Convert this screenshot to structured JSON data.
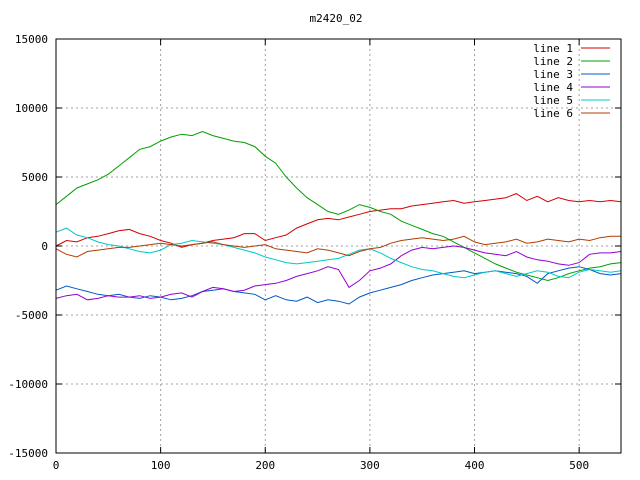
{
  "chart_data": {
    "type": "line",
    "title": "m2420_02",
    "xlabel": "",
    "ylabel": "",
    "xlim": [
      0,
      540
    ],
    "ylim": [
      -15000,
      15000
    ],
    "xticks": [
      0,
      100,
      200,
      300,
      400,
      500
    ],
    "yticks": [
      -15000,
      -10000,
      -5000,
      0,
      5000,
      10000,
      15000
    ],
    "grid": true,
    "legend_position": "top-right",
    "series": [
      {
        "name": "line 1",
        "color": "#d40000",
        "x": [
          0,
          10,
          20,
          30,
          40,
          50,
          60,
          70,
          80,
          90,
          100,
          110,
          120,
          130,
          140,
          150,
          160,
          170,
          180,
          190,
          200,
          210,
          220,
          230,
          240,
          250,
          260,
          270,
          280,
          290,
          300,
          310,
          320,
          330,
          340,
          350,
          360,
          370,
          380,
          390,
          400,
          410,
          420,
          430,
          440,
          450,
          460,
          470,
          480,
          490,
          500,
          510,
          520,
          530,
          540
        ],
        "y": [
          0,
          400,
          300,
          600,
          700,
          900,
          1100,
          1200,
          900,
          700,
          400,
          200,
          -100,
          100,
          200,
          400,
          500,
          600,
          900,
          900,
          400,
          600,
          800,
          1300,
          1600,
          1900,
          2000,
          1900,
          2100,
          2300,
          2500,
          2600,
          2700,
          2700,
          2900,
          3000,
          3100,
          3200,
          3300,
          3100,
          3200,
          3300,
          3400,
          3500,
          3800,
          3300,
          3600,
          3200,
          3500,
          3300,
          3200,
          3300,
          3200,
          3300,
          3200
        ]
      },
      {
        "name": "line 2",
        "color": "#00a000",
        "x": [
          0,
          10,
          20,
          30,
          40,
          50,
          60,
          70,
          80,
          90,
          100,
          110,
          120,
          130,
          140,
          150,
          160,
          170,
          180,
          190,
          200,
          210,
          220,
          230,
          240,
          250,
          260,
          270,
          280,
          290,
          300,
          310,
          320,
          330,
          340,
          350,
          360,
          370,
          380,
          390,
          400,
          410,
          420,
          430,
          440,
          450,
          460,
          470,
          480,
          490,
          500,
          510,
          520,
          530,
          540
        ],
        "y": [
          3000,
          3600,
          4200,
          4500,
          4800,
          5200,
          5800,
          6400,
          7000,
          7200,
          7600,
          7900,
          8100,
          8000,
          8300,
          8000,
          7800,
          7600,
          7500,
          7200,
          6500,
          6000,
          5000,
          4200,
          3500,
          3000,
          2500,
          2300,
          2600,
          3000,
          2800,
          2500,
          2300,
          1800,
          1500,
          1200,
          900,
          700,
          300,
          -100,
          -500,
          -900,
          -1300,
          -1600,
          -1900,
          -2100,
          -2300,
          -2500,
          -2300,
          -2000,
          -1800,
          -1600,
          -1500,
          -1300,
          -1200
        ]
      },
      {
        "name": "line 3",
        "color": "#0058c8",
        "x": [
          0,
          10,
          20,
          30,
          40,
          50,
          60,
          70,
          80,
          90,
          100,
          110,
          120,
          130,
          140,
          150,
          160,
          170,
          180,
          190,
          200,
          210,
          220,
          230,
          240,
          250,
          260,
          270,
          280,
          290,
          300,
          310,
          320,
          330,
          340,
          350,
          360,
          370,
          380,
          390,
          400,
          410,
          420,
          430,
          440,
          450,
          460,
          470,
          480,
          490,
          500,
          510,
          520,
          530,
          540
        ],
        "y": [
          -3200,
          -2900,
          -3100,
          -3300,
          -3500,
          -3600,
          -3500,
          -3700,
          -3800,
          -3600,
          -3700,
          -3900,
          -3800,
          -3600,
          -3300,
          -3200,
          -3100,
          -3300,
          -3400,
          -3500,
          -3900,
          -3600,
          -3900,
          -4000,
          -3700,
          -4100,
          -3900,
          -4000,
          -4200,
          -3700,
          -3400,
          -3200,
          -3000,
          -2800,
          -2500,
          -2300,
          -2100,
          -2000,
          -1900,
          -1800,
          -2000,
          -1900,
          -1800,
          -1900,
          -2000,
          -2200,
          -2700,
          -2000,
          -1800,
          -1600,
          -1500,
          -1700,
          -2000,
          -2100,
          -2000
        ]
      },
      {
        "name": "line 4",
        "color": "#9400d3",
        "x": [
          0,
          10,
          20,
          30,
          40,
          50,
          60,
          70,
          80,
          90,
          100,
          110,
          120,
          130,
          140,
          150,
          160,
          170,
          180,
          190,
          200,
          210,
          220,
          230,
          240,
          250,
          260,
          270,
          280,
          290,
          300,
          310,
          320,
          330,
          340,
          350,
          360,
          370,
          380,
          390,
          400,
          410,
          420,
          430,
          440,
          450,
          460,
          470,
          480,
          490,
          500,
          510,
          520,
          530,
          540
        ],
        "y": [
          -3800,
          -3600,
          -3500,
          -3900,
          -3800,
          -3600,
          -3700,
          -3700,
          -3600,
          -3800,
          -3700,
          -3500,
          -3400,
          -3700,
          -3300,
          -3000,
          -3100,
          -3300,
          -3200,
          -2900,
          -2800,
          -2700,
          -2500,
          -2200,
          -2000,
          -1800,
          -1500,
          -1700,
          -3000,
          -2500,
          -1800,
          -1600,
          -1300,
          -700,
          -300,
          -100,
          -200,
          -100,
          0,
          -100,
          -300,
          -500,
          -600,
          -700,
          -400,
          -800,
          -1000,
          -1100,
          -1300,
          -1400,
          -1200,
          -600,
          -500,
          -500,
          -400
        ]
      },
      {
        "name": "line 5",
        "color": "#00c8c8",
        "x": [
          0,
          10,
          20,
          30,
          40,
          50,
          60,
          70,
          80,
          90,
          100,
          110,
          120,
          130,
          140,
          150,
          160,
          170,
          180,
          190,
          200,
          210,
          220,
          230,
          240,
          250,
          260,
          270,
          280,
          290,
          300,
          310,
          320,
          330,
          340,
          350,
          360,
          370,
          380,
          390,
          400,
          410,
          420,
          430,
          440,
          450,
          460,
          470,
          480,
          490,
          500,
          510,
          520,
          530,
          540
        ],
        "y": [
          1000,
          1300,
          800,
          600,
          300,
          100,
          0,
          -200,
          -400,
          -500,
          -300,
          100,
          200,
          400,
          300,
          200,
          100,
          -100,
          -300,
          -500,
          -800,
          -1000,
          -1200,
          -1300,
          -1200,
          -1100,
          -1000,
          -900,
          -600,
          -300,
          -200,
          -500,
          -900,
          -1200,
          -1500,
          -1700,
          -1800,
          -2000,
          -2200,
          -2300,
          -2100,
          -1900,
          -1800,
          -2000,
          -2200,
          -2000,
          -1800,
          -1900,
          -2200,
          -2300,
          -1900,
          -1700,
          -1800,
          -1900,
          -1800
        ]
      },
      {
        "name": "line 6",
        "color": "#b43c00",
        "x": [
          0,
          10,
          20,
          30,
          40,
          50,
          60,
          70,
          80,
          90,
          100,
          110,
          120,
          130,
          140,
          150,
          160,
          170,
          180,
          190,
          200,
          210,
          220,
          230,
          240,
          250,
          260,
          270,
          280,
          290,
          300,
          310,
          320,
          330,
          340,
          350,
          360,
          370,
          380,
          390,
          400,
          410,
          420,
          430,
          440,
          450,
          460,
          470,
          480,
          490,
          500,
          510,
          520,
          530,
          540
        ],
        "y": [
          -200,
          -600,
          -800,
          -400,
          -300,
          -200,
          -100,
          -100,
          0,
          100,
          200,
          100,
          0,
          100,
          200,
          300,
          100,
          0,
          -100,
          0,
          100,
          -200,
          -300,
          -400,
          -500,
          -200,
          -300,
          -500,
          -700,
          -400,
          -200,
          -100,
          200,
          400,
          500,
          600,
          500,
          400,
          500,
          700,
          300,
          100,
          200,
          300,
          500,
          200,
          300,
          500,
          400,
          300,
          500,
          400,
          600,
          700,
          700
        ]
      }
    ]
  }
}
